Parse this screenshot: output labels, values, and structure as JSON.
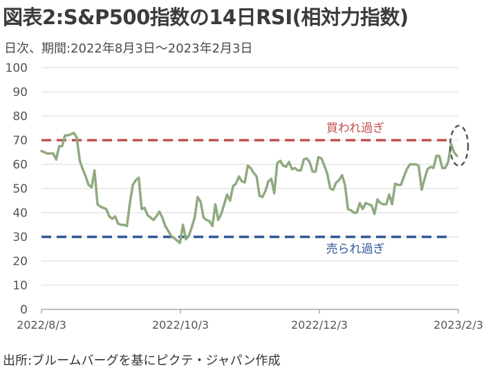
{
  "header": {
    "title": "図表2:S&P500指数の14日RSI(相対力指数)",
    "subtitle": "日次、期間:2022年8月3日～2023年2月3日"
  },
  "footer": {
    "source": "出所:ブルームバーグを基にピクテ・ジャパン作成"
  },
  "colors": {
    "series": "#8faa7f",
    "overbought": "#c0504d",
    "oversold": "#2f5597",
    "grid": "#d9d9d9",
    "axis": "#999999",
    "marker": "#555555"
  },
  "chart_data": {
    "type": "line",
    "title": "図表2:S&P500指数の14日RSI(相対力指数)",
    "xlabel": "",
    "ylabel": "",
    "ylim": [
      0,
      100
    ],
    "yticks": [
      "0",
      "10",
      "20",
      "30",
      "40",
      "50",
      "60",
      "70",
      "80",
      "90",
      "100"
    ],
    "xticks": [
      "2022/8/3",
      "2022/10/3",
      "2022/12/3",
      "2023/2/3"
    ],
    "grid": true,
    "legend": "none",
    "reference_lines": [
      {
        "label": "買われ過ぎ",
        "value": 70
      },
      {
        "label": "売られ過ぎ",
        "value": 30
      }
    ],
    "annotations": [
      {
        "type": "dashed-ellipse",
        "target": "latest value"
      }
    ],
    "series": [
      {
        "values": [
          65.5,
          65,
          64.5,
          64.5,
          64.5,
          62,
          67.5,
          67.5,
          72,
          72,
          72.5,
          73,
          71,
          61.5,
          58,
          55,
          51.5,
          50.5,
          57.5,
          43.5,
          42.5,
          42,
          41.5,
          38.5,
          37.5,
          38.5,
          35.5,
          35,
          35,
          34.5,
          44,
          51.5,
          53.5,
          54.5,
          41.5,
          42,
          39,
          38,
          37,
          38.5,
          40.5,
          38,
          34.5,
          32.5,
          30.5,
          29.5,
          28.5,
          27.5,
          35,
          29,
          30.5,
          34,
          38,
          46.5,
          44.5,
          38,
          37,
          36.5,
          34.5,
          43.5,
          37,
          39.5,
          43.5,
          47.5,
          45,
          51,
          52,
          55,
          53,
          52.5,
          59.5,
          58.5,
          56.5,
          55,
          47,
          46.5,
          49,
          53,
          54,
          48,
          60.5,
          61.5,
          59.5,
          59,
          61,
          58,
          58.5,
          57.5,
          57.5,
          62,
          62.5,
          61,
          57,
          57,
          63,
          62.5,
          59.5,
          56,
          50,
          49.5,
          52.5,
          53.5,
          55.5,
          51.5,
          41.5,
          41,
          40,
          40,
          44,
          41.5,
          44,
          43.5,
          43,
          39.5,
          45.5,
          44,
          43.5,
          43.5,
          47.5,
          43.5,
          52,
          51.5,
          51.5,
          55,
          58,
          60,
          60,
          60,
          59.5,
          49.5,
          54,
          58,
          59,
          58.5,
          63.5,
          63.5,
          58.5,
          58.5,
          61,
          68.5,
          65,
          63.5
        ]
      }
    ]
  }
}
